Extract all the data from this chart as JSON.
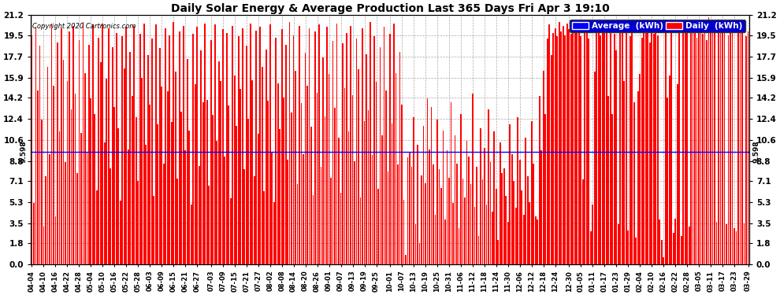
{
  "title": "Daily Solar Energy & Average Production Last 365 Days Fri Apr 3 19:10",
  "copyright": "Copyright 2020 Cartronics.com",
  "average_value": 9.598,
  "average_label": "9.598",
  "bar_color": "#FF0000",
  "average_color": "#0000FF",
  "background_color": "#FFFFFF",
  "grid_color": "#AAAAAA",
  "yticks": [
    0.0,
    1.8,
    3.5,
    5.3,
    7.1,
    8.8,
    10.6,
    12.4,
    14.2,
    15.9,
    17.7,
    19.5,
    21.2
  ],
  "ylim": [
    0.0,
    21.2
  ],
  "legend_avg_text": "Average  (kWh)",
  "legend_daily_text": "Daily  (kWh)",
  "x_labels": [
    "04-04",
    "04-10",
    "04-16",
    "04-22",
    "04-28",
    "05-04",
    "05-10",
    "05-16",
    "05-22",
    "05-28",
    "06-03",
    "06-09",
    "06-15",
    "06-21",
    "06-27",
    "07-03",
    "07-09",
    "07-15",
    "07-21",
    "07-27",
    "08-02",
    "08-08",
    "08-14",
    "08-20",
    "08-26",
    "09-01",
    "09-07",
    "09-13",
    "09-19",
    "09-25",
    "10-01",
    "10-07",
    "10-13",
    "10-19",
    "10-25",
    "10-31",
    "11-06",
    "11-12",
    "11-18",
    "11-24",
    "11-30",
    "12-06",
    "12-12",
    "12-18",
    "12-24",
    "12-30",
    "01-05",
    "01-11",
    "01-17",
    "01-23",
    "01-29",
    "02-04",
    "02-10",
    "02-16",
    "02-22",
    "02-28",
    "03-05",
    "03-11",
    "03-17",
    "03-23",
    "03-29"
  ],
  "daily_values": [
    19.5,
    5.2,
    20.2,
    14.8,
    18.6,
    12.3,
    3.2,
    7.5,
    16.8,
    9.4,
    20.5,
    15.2,
    4.1,
    18.9,
    11.3,
    20.1,
    17.4,
    8.7,
    15.6,
    19.8,
    13.2,
    20.3,
    14.5,
    7.8,
    19.1,
    11.2,
    20.6,
    16.3,
    9.5,
    18.7,
    14.1,
    20.4,
    12.8,
    6.3,
    19.3,
    17.2,
    20.5,
    10.4,
    15.8,
    20.1,
    8.2,
    18.5,
    13.4,
    19.7,
    11.6,
    5.4,
    19.4,
    16.7,
    20.2,
    9.8,
    18.1,
    14.3,
    20.3,
    12.5,
    7.1,
    19.6,
    15.9,
    20.5,
    10.2,
    17.8,
    13.6,
    19.2,
    5.8,
    20.4,
    11.9,
    18.4,
    15.1,
    8.6,
    20.1,
    14.7,
    19.5,
    12.1,
    20.6,
    16.4,
    7.3,
    19.8,
    13.0,
    20.3,
    9.7,
    17.5,
    11.4,
    5.1,
    19.6,
    15.3,
    20.2,
    8.4,
    18.2,
    13.8,
    20.5,
    14.0,
    6.7,
    19.1,
    12.7,
    20.4,
    10.5,
    17.3,
    15.6,
    20.0,
    9.2,
    19.7,
    13.5,
    5.6,
    20.3,
    16.1,
    11.8,
    19.4,
    14.9,
    20.1,
    8.1,
    18.6,
    12.4,
    20.5,
    15.7,
    7.5,
    19.9,
    11.1,
    20.2,
    16.8,
    6.2,
    18.3,
    13.9,
    20.4,
    9.6,
    5.3,
    19.3,
    15.4,
    11.5,
    20.0,
    14.2,
    18.7,
    8.9,
    20.6,
    12.9,
    19.5,
    16.5,
    6.8,
    20.3,
    13.7,
    9.4,
    18.0,
    15.2,
    20.1,
    11.7,
    5.9,
    19.8,
    14.6,
    20.4,
    8.3,
    17.6,
    12.6,
    20.2,
    16.2,
    7.4,
    19.0,
    13.3,
    20.5,
    10.8,
    6.1,
    18.8,
    15.0,
    19.7,
    11.3,
    20.3,
    14.4,
    8.8,
    19.2,
    16.6,
    5.7,
    20.1,
    12.2,
    17.9,
    13.1,
    20.6,
    9.3,
    19.4,
    15.5,
    6.4,
    18.5,
    11.0,
    20.2,
    14.8,
    7.9,
    19.6,
    12.0,
    20.5,
    16.3,
    8.5,
    18.1,
    13.6,
    5.5,
    0.8,
    9.1,
    9.5,
    8.3,
    12.5,
    3.4,
    10.2,
    1.8,
    7.6,
    11.8,
    6.9,
    14.1,
    9.8,
    13.4,
    8.5,
    4.2,
    12.3,
    8.1,
    6.5,
    11.4,
    3.8,
    9.7,
    7.4,
    13.8,
    5.2,
    11.0,
    8.6,
    3.1,
    12.8,
    7.3,
    5.7,
    10.5,
    9.2,
    6.8,
    14.5,
    4.9,
    8.3,
    2.4,
    11.6,
    7.2,
    9.9,
    5.1,
    13.2,
    8.7,
    4.5,
    11.3,
    6.4,
    2.1,
    10.4,
    7.8,
    8.2,
    5.8,
    3.6,
    11.9,
    9.4,
    7.1,
    4.8,
    12.5,
    8.9,
    6.3,
    4.2,
    10.8,
    7.5,
    5.3,
    12.2,
    8.6,
    4.1,
    3.8,
    14.3,
    9.7,
    16.5,
    12.8,
    19.2,
    20.4,
    17.8,
    19.7,
    20.1,
    19.4,
    20.6,
    19.8,
    20.3,
    19.5,
    20.5,
    20.0,
    19.6,
    20.2,
    20.5,
    19.8,
    20.1,
    19.4,
    7.2,
    20.3,
    20.6,
    19.2,
    2.8,
    5.1,
    16.4,
    19.7,
    20.2,
    19.5,
    20.4,
    19.8,
    20.5,
    14.3,
    20.0,
    12.8,
    19.6,
    18.2,
    3.4,
    20.3,
    19.8,
    15.6,
    20.1,
    2.9,
    19.4,
    20.6,
    13.8,
    2.3,
    14.7,
    16.2,
    19.3,
    20.0,
    19.7,
    20.4,
    18.9,
    20.5,
    19.6,
    20.1,
    19.5,
    3.8,
    2.1,
    0.6,
    19.8,
    14.2,
    16.1,
    20.2,
    2.7,
    3.9,
    15.3,
    20.0,
    2.4,
    19.7,
    20.3,
    20.6,
    3.2,
    19.9,
    20.1,
    20.5,
    19.3,
    20.8,
    20.2,
    19.6,
    20.4,
    19.1,
    21.0,
    20.5,
    20.3,
    19.7,
    3.6,
    20.1,
    19.8,
    20.4,
    20.0,
    3.4,
    19.5,
    20.6,
    19.9,
    3.1,
    2.8,
    20.3,
    19.7,
    20.1,
    3.5,
    19.4,
    19.8
  ]
}
